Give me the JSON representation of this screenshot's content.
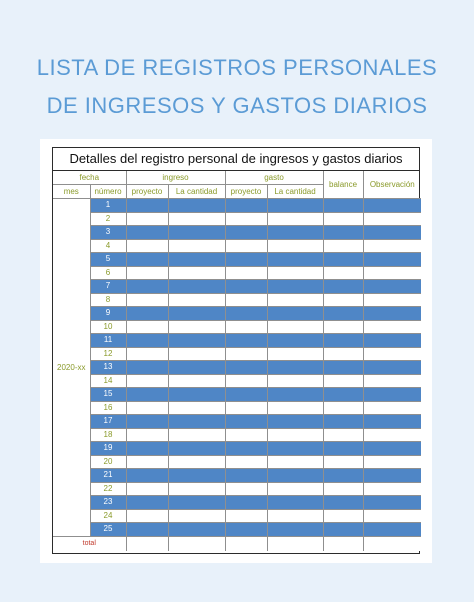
{
  "page": {
    "title_line1": "LISTA DE REGISTROS PERSONALES",
    "title_line2": "DE INGRESOS Y GASTOS DIARIOS"
  },
  "sheet": {
    "title": "Detalles del registro personal de ingresos y gastos diarios",
    "headers": {
      "fecha": "fecha",
      "ingreso": "ingreso",
      "gasto": "gasto",
      "balance": "balance",
      "observacion": "Observación",
      "mes": "mes",
      "numero": "número",
      "proyecto_ingreso": "proyecto",
      "cantidad_ingreso": "La cantidad",
      "proyecto_gasto": "proyecto",
      "cantidad_gasto": "La cantidad"
    },
    "month_value": "2020-xx",
    "row_numbers": [
      "1",
      "2",
      "3",
      "4",
      "5",
      "6",
      "7",
      "8",
      "9",
      "10",
      "11",
      "12",
      "13",
      "14",
      "15",
      "16",
      "17",
      "18",
      "19",
      "20",
      "21",
      "22",
      "23",
      "24",
      "25"
    ],
    "total_label": "total"
  },
  "colors": {
    "title": "#5b9bd5",
    "row_blue": "#4f86c6",
    "header_text": "#8a9a2a",
    "total_text": "#c0392b",
    "background": "#e8f1fa"
  }
}
